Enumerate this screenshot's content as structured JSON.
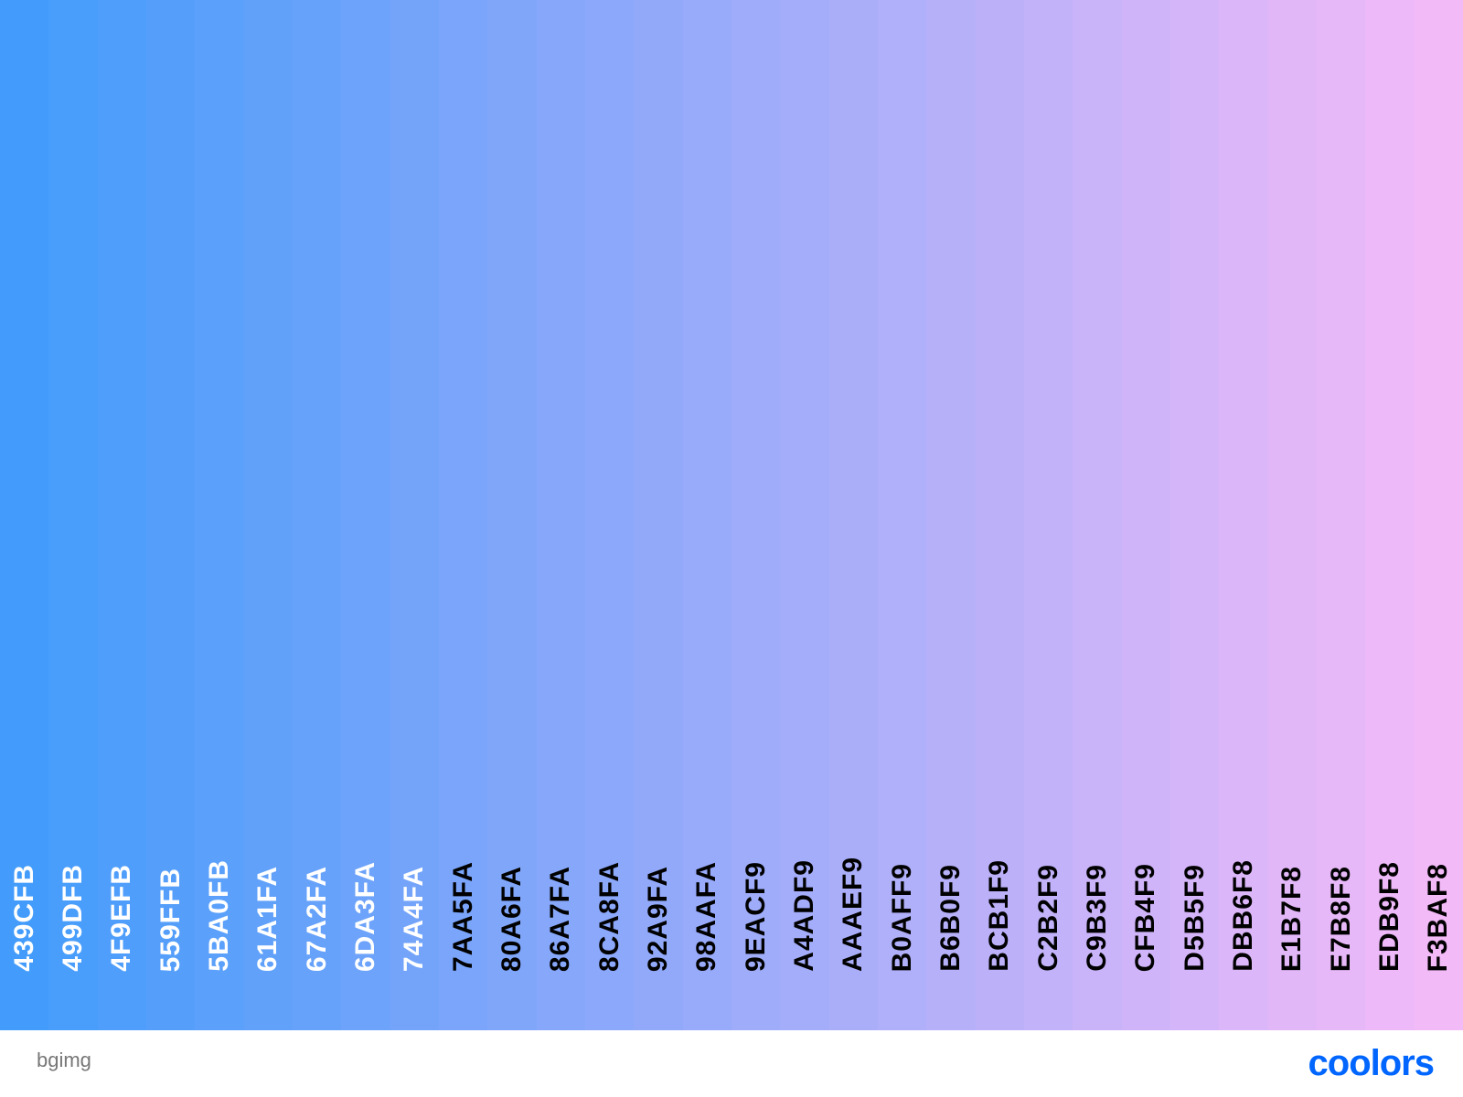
{
  "palette": {
    "swatches": [
      {
        "code": "439CFB",
        "color": "#439CFB",
        "text_color": "#FFFFFF"
      },
      {
        "code": "499DFB",
        "color": "#499DFB",
        "text_color": "#FFFFFF"
      },
      {
        "code": "4F9EFB",
        "color": "#4F9EFB",
        "text_color": "#FFFFFF"
      },
      {
        "code": "559FFB",
        "color": "#559FFB",
        "text_color": "#FFFFFF"
      },
      {
        "code": "5BA0FB",
        "color": "#5BA0FB",
        "text_color": "#FFFFFF"
      },
      {
        "code": "61A1FA",
        "color": "#61A1FA",
        "text_color": "#FFFFFF"
      },
      {
        "code": "67A2FA",
        "color": "#67A2FA",
        "text_color": "#FFFFFF"
      },
      {
        "code": "6DA3FA",
        "color": "#6DA3FA",
        "text_color": "#FFFFFF"
      },
      {
        "code": "74A4FA",
        "color": "#74A4FA",
        "text_color": "#FFFFFF"
      },
      {
        "code": "7AA5FA",
        "color": "#7AA5FA",
        "text_color": "#000000"
      },
      {
        "code": "80A6FA",
        "color": "#80A6FA",
        "text_color": "#000000"
      },
      {
        "code": "86A7FA",
        "color": "#86A7FA",
        "text_color": "#000000"
      },
      {
        "code": "8CA8FA",
        "color": "#8CA8FA",
        "text_color": "#000000"
      },
      {
        "code": "92A9FA",
        "color": "#92A9FA",
        "text_color": "#000000"
      },
      {
        "code": "98AAFA",
        "color": "#98AAFA",
        "text_color": "#000000"
      },
      {
        "code": "9EACF9",
        "color": "#9EACF9",
        "text_color": "#000000"
      },
      {
        "code": "A4ADF9",
        "color": "#A4ADF9",
        "text_color": "#000000"
      },
      {
        "code": "AAAEF9",
        "color": "#AAAEF9",
        "text_color": "#000000"
      },
      {
        "code": "B0AFF9",
        "color": "#B0AFF9",
        "text_color": "#000000"
      },
      {
        "code": "B6B0F9",
        "color": "#B6B0F9",
        "text_color": "#000000"
      },
      {
        "code": "BCB1F9",
        "color": "#BCB1F9",
        "text_color": "#000000"
      },
      {
        "code": "C2B2F9",
        "color": "#C2B2F9",
        "text_color": "#000000"
      },
      {
        "code": "C9B3F9",
        "color": "#C9B3F9",
        "text_color": "#000000"
      },
      {
        "code": "CFB4F9",
        "color": "#CFB4F9",
        "text_color": "#000000"
      },
      {
        "code": "D5B5F9",
        "color": "#D5B5F9",
        "text_color": "#000000"
      },
      {
        "code": "DBB6F8",
        "color": "#DBB6F8",
        "text_color": "#000000"
      },
      {
        "code": "E1B7F8",
        "color": "#E1B7F8",
        "text_color": "#000000"
      },
      {
        "code": "E7B8F8",
        "color": "#E7B8F8",
        "text_color": "#000000"
      },
      {
        "code": "EDB9F8",
        "color": "#EDB9F8",
        "text_color": "#000000"
      },
      {
        "code": "F3BAF8",
        "color": "#F3BAF8",
        "text_color": "#000000"
      }
    ]
  },
  "footer": {
    "name": "bgimg",
    "brand": "coolors",
    "brand_color": "#0066FF",
    "brand_icon": "coolors-logo-icon"
  }
}
